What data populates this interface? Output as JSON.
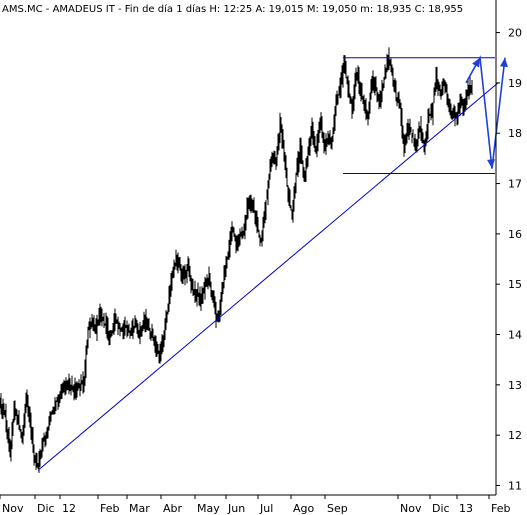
{
  "header": {
    "text": "AMS.MC - AMADEUS IT - Fin de día 1 días  H: 12:25  A: 19,015  M: 19,050  m: 18,935  C: 18,955"
  },
  "colors": {
    "background": "#ffffff",
    "candle": "#000000",
    "trendline": "#0000cc",
    "projection": "#1e40d6",
    "axis": "#000000"
  },
  "chart_data": {
    "type": "candlestick",
    "symbol": "AMS.MC",
    "name": "AMADEUS IT",
    "quote": {
      "open": 19.015,
      "high": 19.05,
      "low": 18.935,
      "close": 18.955
    },
    "y_axis": {
      "side": "right",
      "ticks": [
        "11",
        "12",
        "13",
        "14",
        "15",
        "16",
        "17",
        "18",
        "19",
        "20"
      ],
      "ylim": [
        10.95,
        20.25
      ]
    },
    "x_axis": {
      "ticks": [
        "Nov",
        "Dic",
        "12",
        "Feb",
        "Mar",
        "Abr",
        "May",
        "Jun",
        "Jul",
        "Ago",
        "Sep",
        "Nov",
        "Dic",
        "13",
        "Feb"
      ],
      "tick_index": [
        0,
        35,
        60,
        98,
        127,
        161,
        195,
        226,
        258,
        291,
        325,
        398,
        430,
        457,
        489
      ]
    },
    "close_path": [
      [
        0,
        12.6
      ],
      [
        5,
        12.4
      ],
      [
        10,
        11.6
      ],
      [
        14,
        12.5
      ],
      [
        18,
        12.3
      ],
      [
        22,
        11.9
      ],
      [
        26,
        12.7
      ],
      [
        30,
        12.3
      ],
      [
        34,
        11.6
      ],
      [
        38,
        11.4
      ],
      [
        42,
        11.8
      ],
      [
        46,
        12.0
      ],
      [
        50,
        12.3
      ],
      [
        55,
        12.6
      ],
      [
        60,
        12.8
      ],
      [
        66,
        13.0
      ],
      [
        72,
        12.9
      ],
      [
        78,
        12.9
      ],
      [
        84,
        13.1
      ],
      [
        88,
        14.1
      ],
      [
        92,
        14.3
      ],
      [
        96,
        14.1
      ],
      [
        100,
        14.4
      ],
      [
        105,
        14.2
      ],
      [
        110,
        13.9
      ],
      [
        115,
        14.3
      ],
      [
        120,
        14.1
      ],
      [
        125,
        14.2
      ],
      [
        130,
        14.0
      ],
      [
        135,
        14.2
      ],
      [
        140,
        14.0
      ],
      [
        145,
        14.3
      ],
      [
        150,
        14.1
      ],
      [
        155,
        13.8
      ],
      [
        160,
        13.6
      ],
      [
        164,
        14.0
      ],
      [
        168,
        14.6
      ],
      [
        172,
        15.2
      ],
      [
        176,
        15.5
      ],
      [
        180,
        15.3
      ],
      [
        184,
        15.1
      ],
      [
        188,
        15.4
      ],
      [
        192,
        14.9
      ],
      [
        196,
        14.8
      ],
      [
        200,
        14.7
      ],
      [
        204,
        14.9
      ],
      [
        208,
        15.1
      ],
      [
        212,
        14.8
      ],
      [
        216,
        14.3
      ],
      [
        220,
        14.5
      ],
      [
        224,
        15.2
      ],
      [
        228,
        15.6
      ],
      [
        232,
        16.1
      ],
      [
        236,
        15.8
      ],
      [
        240,
        16.0
      ],
      [
        244,
        16.0
      ],
      [
        248,
        16.7
      ],
      [
        252,
        16.6
      ],
      [
        256,
        16.3
      ],
      [
        260,
        15.8
      ],
      [
        264,
        16.3
      ],
      [
        268,
        17.0
      ],
      [
        272,
        17.6
      ],
      [
        276,
        17.4
      ],
      [
        280,
        18.2
      ],
      [
        284,
        17.6
      ],
      [
        288,
        16.8
      ],
      [
        292,
        16.4
      ],
      [
        296,
        17.2
      ],
      [
        300,
        17.7
      ],
      [
        304,
        17.1
      ],
      [
        308,
        17.6
      ],
      [
        312,
        18.1
      ],
      [
        316,
        17.6
      ],
      [
        320,
        18.3
      ],
      [
        324,
        17.7
      ],
      [
        328,
        17.9
      ],
      [
        332,
        17.9
      ],
      [
        336,
        18.6
      ],
      [
        340,
        18.9
      ],
      [
        344,
        19.4
      ],
      [
        348,
        18.9
      ],
      [
        352,
        18.5
      ],
      [
        356,
        19.2
      ],
      [
        360,
        18.9
      ],
      [
        364,
        18.6
      ],
      [
        368,
        18.3
      ],
      [
        372,
        19.1
      ],
      [
        376,
        18.9
      ],
      [
        380,
        18.6
      ],
      [
        384,
        19.1
      ],
      [
        388,
        19.5
      ],
      [
        392,
        19.2
      ],
      [
        396,
        18.7
      ],
      [
        400,
        18.5
      ],
      [
        404,
        17.7
      ],
      [
        408,
        18.1
      ],
      [
        412,
        18.0
      ],
      [
        416,
        17.8
      ],
      [
        420,
        18.1
      ],
      [
        424,
        17.7
      ],
      [
        428,
        18.3
      ],
      [
        432,
        18.4
      ],
      [
        436,
        19.1
      ],
      [
        440,
        18.8
      ],
      [
        444,
        19.0
      ],
      [
        448,
        18.7
      ],
      [
        452,
        18.4
      ],
      [
        456,
        18.3
      ],
      [
        460,
        18.6
      ],
      [
        464,
        18.5
      ],
      [
        468,
        18.9
      ],
      [
        472,
        18.95
      ]
    ],
    "annotations": {
      "trendline": {
        "from": [
          38,
          11.3
        ],
        "to": [
          498,
          19.0
        ]
      },
      "resistance": {
        "y": 19.5,
        "x_range": [
          343,
          495
        ]
      },
      "support": {
        "y": 17.2,
        "x_range": [
          343,
          495
        ]
      },
      "projection_arrows": [
        [
          [
            466,
            19.0
          ],
          [
            480,
            19.5
          ],
          [
            492,
            17.3
          ],
          [
            505,
            19.5
          ]
        ]
      ]
    }
  }
}
